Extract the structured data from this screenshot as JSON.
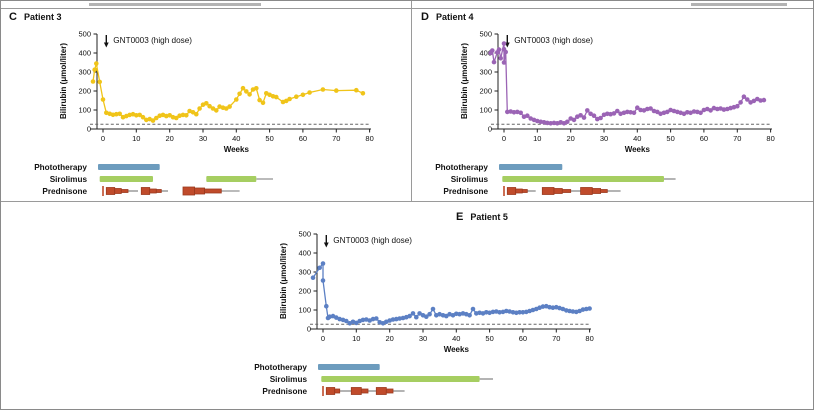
{
  "colors": {
    "patient3_series": "#F0C419",
    "patient4_series": "#9B64B5",
    "patient5_series": "#5C80C4",
    "phototherapy_bar": "#6D9CBE",
    "sirolimus_bar": "#A6CE61",
    "prednisone_fill": "#C04B2B",
    "prednisone_stroke": "#9C3A1E",
    "threshold_line": "#666666",
    "axis": "#222222",
    "divider": "#9A9A9A"
  },
  "chart_data": [
    {
      "type": "line",
      "panel_letter": "C",
      "title": "Patient 3",
      "color": "#F0C419",
      "ylabel": "Bilirubin (μmol/liter)",
      "xlabel": "Weeks",
      "ylim": [
        0,
        500
      ],
      "xlim": [
        -5,
        82
      ],
      "yticks": [
        0,
        100,
        200,
        300,
        400,
        500
      ],
      "xticks": [
        0,
        10,
        20,
        30,
        40,
        50,
        60,
        70,
        80
      ],
      "threshold": 25,
      "annotation": "GNT0003 (high dose)",
      "annotation_week": 1,
      "series": [
        [
          -3,
          250
        ],
        [
          -2.5,
          312
        ],
        [
          -2,
          345
        ],
        [
          -1,
          248
        ],
        [
          0,
          155
        ],
        [
          1,
          85
        ],
        [
          2,
          80
        ],
        [
          3,
          75
        ],
        [
          4,
          78
        ],
        [
          5,
          80
        ],
        [
          6,
          62
        ],
        [
          7,
          68
        ],
        [
          8,
          74
        ],
        [
          9,
          78
        ],
        [
          10,
          72
        ],
        [
          11,
          74
        ],
        [
          12,
          62
        ],
        [
          13,
          48
        ],
        [
          14,
          52
        ],
        [
          15,
          44
        ],
        [
          16,
          58
        ],
        [
          17,
          70
        ],
        [
          18,
          74
        ],
        [
          19,
          68
        ],
        [
          20,
          72
        ],
        [
          21,
          62
        ],
        [
          22,
          58
        ],
        [
          23,
          70
        ],
        [
          24,
          74
        ],
        [
          25,
          72
        ],
        [
          26,
          95
        ],
        [
          27,
          88
        ],
        [
          28,
          78
        ],
        [
          29,
          108
        ],
        [
          30,
          128
        ],
        [
          31,
          135
        ],
        [
          32,
          120
        ],
        [
          33,
          108
        ],
        [
          34,
          98
        ],
        [
          35,
          118
        ],
        [
          36,
          112
        ],
        [
          37,
          108
        ],
        [
          38,
          118
        ],
        [
          40,
          155
        ],
        [
          41,
          185
        ],
        [
          42,
          215
        ],
        [
          43,
          198
        ],
        [
          44,
          182
        ],
        [
          45,
          208
        ],
        [
          46,
          214
        ],
        [
          47,
          152
        ],
        [
          48,
          138
        ],
        [
          49,
          188
        ],
        [
          50,
          180
        ],
        [
          51,
          172
        ],
        [
          52,
          168
        ],
        [
          54,
          142
        ],
        [
          55,
          148
        ],
        [
          56,
          158
        ],
        [
          58,
          170
        ],
        [
          60,
          180
        ],
        [
          62,
          192
        ],
        [
          66,
          208
        ],
        [
          70,
          202
        ],
        [
          76,
          204
        ],
        [
          78,
          188
        ]
      ],
      "therapies": [
        {
          "label": "Phototherapy",
          "color": "#6D9CBE",
          "bars": [
            [
              -1.5,
              17
            ]
          ]
        },
        {
          "label": "Sirolimus",
          "color": "#A6CE61",
          "bars": [
            [
              -1,
              15
            ],
            [
              31,
              46
            ]
          ],
          "lines": [
            [
              46,
              51
            ]
          ]
        },
        {
          "label": "Prednisone",
          "color": "#C04B2B",
          "stroke": "#9C3A1E",
          "tick": 0,
          "blocks": [
            [
              1,
              3.5,
              7
            ],
            [
              3.5,
              5.5,
              5
            ],
            [
              5.5,
              7.5,
              3
            ],
            [
              11.5,
              14,
              7
            ],
            [
              14,
              16,
              4
            ],
            [
              16,
              17.5,
              3
            ],
            [
              24,
              27.5,
              8
            ],
            [
              27.5,
              30.5,
              6
            ],
            [
              30.5,
              35.5,
              4
            ]
          ],
          "lines": [
            [
              7.5,
              10.5
            ],
            [
              17.5,
              19.5
            ],
            [
              35.5,
              41
            ]
          ]
        }
      ]
    },
    {
      "type": "line",
      "panel_letter": "D",
      "title": "Patient 4",
      "color": "#9B64B5",
      "ylabel": "Bilirubin (μmol/liter)",
      "xlabel": "Weeks",
      "ylim": [
        0,
        500
      ],
      "xlim": [
        -5,
        82
      ],
      "yticks": [
        0,
        100,
        200,
        300,
        400,
        500
      ],
      "xticks": [
        0,
        10,
        20,
        30,
        40,
        50,
        60,
        70,
        80
      ],
      "threshold": 25,
      "annotation": "GNT0003 (high dose)",
      "annotation_week": 1,
      "series": [
        [
          -4,
          400
        ],
        [
          -3.5,
          413
        ],
        [
          -3,
          352
        ],
        [
          -2,
          403
        ],
        [
          -1.5,
          418
        ],
        [
          -1,
          372
        ],
        [
          0,
          450
        ],
        [
          0,
          420
        ],
        [
          0,
          350
        ],
        [
          0.5,
          405
        ],
        [
          1,
          90
        ],
        [
          2,
          92
        ],
        [
          3,
          88
        ],
        [
          4,
          90
        ],
        [
          5,
          85
        ],
        [
          6,
          65
        ],
        [
          7,
          70
        ],
        [
          8,
          55
        ],
        [
          9,
          48
        ],
        [
          10,
          42
        ],
        [
          11,
          38
        ],
        [
          12,
          35
        ],
        [
          13,
          32
        ],
        [
          14,
          30
        ],
        [
          15,
          32
        ],
        [
          16,
          30
        ],
        [
          17,
          35
        ],
        [
          18,
          30
        ],
        [
          19,
          38
        ],
        [
          20,
          55
        ],
        [
          21,
          48
        ],
        [
          22,
          65
        ],
        [
          23,
          72
        ],
        [
          24,
          60
        ],
        [
          25,
          98
        ],
        [
          26,
          80
        ],
        [
          27,
          70
        ],
        [
          28,
          52
        ],
        [
          29,
          58
        ],
        [
          30,
          75
        ],
        [
          31,
          80
        ],
        [
          32,
          78
        ],
        [
          33,
          82
        ],
        [
          34,
          95
        ],
        [
          35,
          80
        ],
        [
          36,
          85
        ],
        [
          37,
          90
        ],
        [
          38,
          88
        ],
        [
          39,
          85
        ],
        [
          40,
          112
        ],
        [
          41,
          100
        ],
        [
          42,
          98
        ],
        [
          43,
          105
        ],
        [
          44,
          108
        ],
        [
          45,
          95
        ],
        [
          46,
          90
        ],
        [
          47,
          80
        ],
        [
          48,
          85
        ],
        [
          49,
          90
        ],
        [
          50,
          100
        ],
        [
          51,
          95
        ],
        [
          52,
          90
        ],
        [
          53,
          85
        ],
        [
          54,
          80
        ],
        [
          55,
          88
        ],
        [
          56,
          85
        ],
        [
          57,
          92
        ],
        [
          58,
          90
        ],
        [
          59,
          85
        ],
        [
          60,
          100
        ],
        [
          61,
          105
        ],
        [
          62,
          98
        ],
        [
          63,
          110
        ],
        [
          64,
          105
        ],
        [
          65,
          108
        ],
        [
          66,
          102
        ],
        [
          67,
          105
        ],
        [
          68,
          110
        ],
        [
          69,
          115
        ],
        [
          70,
          120
        ],
        [
          71,
          140
        ],
        [
          72,
          170
        ],
        [
          73,
          155
        ],
        [
          74,
          140
        ],
        [
          75,
          148
        ],
        [
          76,
          158
        ],
        [
          77,
          150
        ],
        [
          78,
          152
        ]
      ],
      "therapies": [
        {
          "label": "Phototherapy",
          "color": "#6D9CBE",
          "bars": [
            [
              -1.5,
              17.5
            ]
          ]
        },
        {
          "label": "Sirolimus",
          "color": "#A6CE61",
          "bars": [
            [
              -0.5,
              48
            ]
          ],
          "lines": [
            [
              48,
              51.5
            ]
          ]
        },
        {
          "label": "Prednisone",
          "color": "#C04B2B",
          "stroke": "#9C3A1E",
          "tick": 0,
          "blocks": [
            [
              1,
              3.5,
              7
            ],
            [
              3.5,
              5.5,
              4
            ],
            [
              5.5,
              7,
              3
            ],
            [
              11.5,
              15,
              7
            ],
            [
              15,
              17.5,
              5
            ],
            [
              17.5,
              20,
              3
            ],
            [
              23,
              26.5,
              7
            ],
            [
              26.5,
              29,
              5
            ],
            [
              29,
              31,
              3
            ]
          ],
          "lines": [
            [
              7,
              9.5
            ],
            [
              20,
              23
            ],
            [
              31,
              35
            ]
          ]
        }
      ]
    },
    {
      "type": "line",
      "panel_letter": "E",
      "title": "Patient 5",
      "color": "#5C80C4",
      "ylabel": "Bilirubin (μmol/liter)",
      "xlabel": "Weeks",
      "ylim": [
        0,
        500
      ],
      "xlim": [
        -5,
        82
      ],
      "yticks": [
        0,
        100,
        200,
        300,
        400,
        500
      ],
      "xticks": [
        0,
        10,
        20,
        30,
        40,
        50,
        60,
        70,
        80
      ],
      "threshold": 25,
      "annotation": "GNT0003 (high dose)",
      "annotation_week": 1,
      "series": [
        [
          -3,
          270
        ],
        [
          -1,
          322
        ],
        [
          0,
          345
        ],
        [
          0,
          255
        ],
        [
          1,
          120
        ],
        [
          1.5,
          58
        ],
        [
          2,
          65
        ],
        [
          3,
          68
        ],
        [
          4,
          60
        ],
        [
          5,
          52
        ],
        [
          6,
          48
        ],
        [
          7,
          42
        ],
        [
          8,
          30
        ],
        [
          9,
          38
        ],
        [
          10,
          32
        ],
        [
          11,
          42
        ],
        [
          12,
          48
        ],
        [
          13,
          50
        ],
        [
          14,
          45
        ],
        [
          15,
          52
        ],
        [
          16,
          55
        ],
        [
          17,
          35
        ],
        [
          18,
          30
        ],
        [
          19,
          38
        ],
        [
          20,
          45
        ],
        [
          21,
          50
        ],
        [
          22,
          52
        ],
        [
          23,
          55
        ],
        [
          24,
          58
        ],
        [
          25,
          62
        ],
        [
          26,
          68
        ],
        [
          27,
          82
        ],
        [
          28,
          62
        ],
        [
          29,
          82
        ],
        [
          30,
          72
        ],
        [
          31,
          65
        ],
        [
          32,
          78
        ],
        [
          33,
          105
        ],
        [
          34,
          72
        ],
        [
          35,
          78
        ],
        [
          36,
          72
        ],
        [
          37,
          68
        ],
        [
          38,
          78
        ],
        [
          39,
          72
        ],
        [
          40,
          80
        ],
        [
          41,
          78
        ],
        [
          42,
          82
        ],
        [
          43,
          78
        ],
        [
          44,
          72
        ],
        [
          45,
          105
        ],
        [
          46,
          82
        ],
        [
          47,
          85
        ],
        [
          48,
          82
        ],
        [
          49,
          88
        ],
        [
          50,
          85
        ],
        [
          51,
          90
        ],
        [
          52,
          92
        ],
        [
          53,
          88
        ],
        [
          54,
          90
        ],
        [
          55,
          95
        ],
        [
          56,
          92
        ],
        [
          57,
          88
        ],
        [
          58,
          85
        ],
        [
          59,
          88
        ],
        [
          60,
          88
        ],
        [
          61,
          90
        ],
        [
          62,
          95
        ],
        [
          63,
          100
        ],
        [
          64,
          105
        ],
        [
          65,
          112
        ],
        [
          66,
          118
        ],
        [
          67,
          120
        ],
        [
          68,
          115
        ],
        [
          69,
          112
        ],
        [
          70,
          115
        ],
        [
          71,
          110
        ],
        [
          72,
          105
        ],
        [
          73,
          98
        ],
        [
          74,
          95
        ],
        [
          75,
          92
        ],
        [
          76,
          90
        ],
        [
          77,
          95
        ],
        [
          78,
          102
        ],
        [
          79,
          105
        ],
        [
          80,
          108
        ]
      ],
      "therapies": [
        {
          "label": "Phototherapy",
          "color": "#6D9CBE",
          "bars": [
            [
              -1.5,
              17
            ]
          ]
        },
        {
          "label": "Sirolimus",
          "color": "#A6CE61",
          "bars": [
            [
              -0.5,
              47
            ]
          ],
          "lines": [
            [
              47,
              51
            ]
          ]
        },
        {
          "label": "Prednisone",
          "color": "#C04B2B",
          "stroke": "#9C3A1E",
          "tick": 0,
          "blocks": [
            [
              1,
              3.5,
              7
            ],
            [
              3.5,
              5,
              4
            ],
            [
              8.5,
              11.5,
              7
            ],
            [
              11.5,
              13.5,
              4
            ],
            [
              16,
              19,
              7
            ],
            [
              19,
              21,
              4
            ]
          ],
          "lines": [
            [
              5,
              8.5
            ],
            [
              13.5,
              16
            ],
            [
              21,
              24.5
            ]
          ]
        }
      ]
    }
  ]
}
